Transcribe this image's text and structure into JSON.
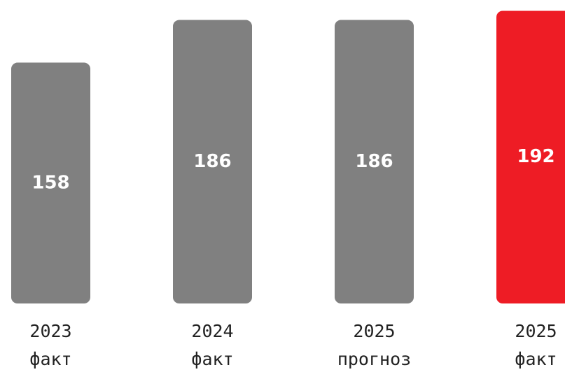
{
  "chart_data": {
    "type": "bar",
    "categories": [
      [
        "2023",
        "факт"
      ],
      [
        "2024",
        "факт"
      ],
      [
        "2025",
        "прогноз"
      ],
      [
        "2025",
        "факт"
      ]
    ],
    "values": [
      158,
      186,
      186,
      192
    ],
    "colors": [
      "#808080",
      "#808080",
      "#808080",
      "#ee1c25"
    ]
  }
}
